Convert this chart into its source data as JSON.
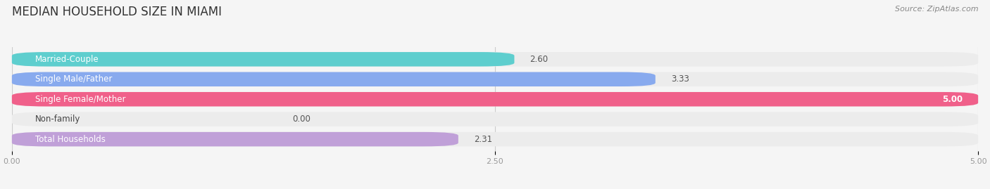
{
  "title": "MEDIAN HOUSEHOLD SIZE IN MIAMI",
  "source": "Source: ZipAtlas.com",
  "categories": [
    "Married-Couple",
    "Single Male/Father",
    "Single Female/Mother",
    "Non-family",
    "Total Households"
  ],
  "values": [
    2.6,
    3.33,
    5.0,
    0.0,
    2.31
  ],
  "bar_colors": [
    "#5ecece",
    "#88aaee",
    "#f0608a",
    "#f5c8a0",
    "#c0a0d8"
  ],
  "bg_colors": [
    "#ececec",
    "#ececec",
    "#ececec",
    "#ececec",
    "#ececec"
  ],
  "xlim": [
    0,
    5.0
  ],
  "xticks": [
    0.0,
    2.5,
    5.0
  ],
  "xtick_labels": [
    "0.00",
    "2.50",
    "5.00"
  ],
  "value_labels": [
    "2.60",
    "3.33",
    "5.00",
    "0.00",
    "2.31"
  ],
  "title_fontsize": 12,
  "label_fontsize": 8.5,
  "value_fontsize": 8.5,
  "bar_height": 0.72,
  "background_color": "#f5f5f5"
}
